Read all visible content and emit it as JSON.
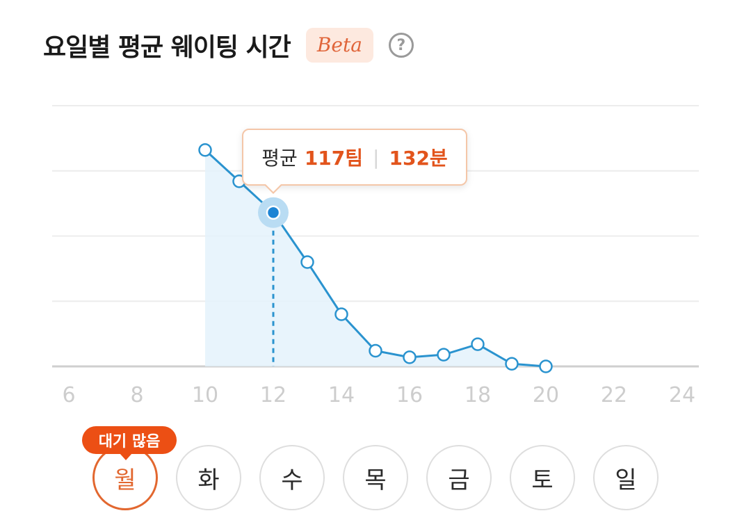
{
  "header": {
    "title": "요일별 평균 웨이팅 시간",
    "beta_label": "Beta",
    "help_glyph": "?"
  },
  "tooltip": {
    "label": "평균",
    "teams": "117팀",
    "minutes": "132분"
  },
  "busy_badge": "대기 많음",
  "days": [
    {
      "label": "월",
      "active": true
    },
    {
      "label": "화",
      "active": false
    },
    {
      "label": "수",
      "active": false
    },
    {
      "label": "목",
      "active": false
    },
    {
      "label": "금",
      "active": false
    },
    {
      "label": "토",
      "active": false
    },
    {
      "label": "일",
      "active": false
    }
  ],
  "colors": {
    "accent": "#e2541c",
    "line": "#2a93cf",
    "fill": "#e4f2fc",
    "grid": "#ececec"
  },
  "chart_data": {
    "type": "line",
    "title": "",
    "xlabel": "",
    "ylabel": "",
    "x_ticks": [
      "6",
      "8",
      "10",
      "12",
      "14",
      "16",
      "18",
      "20",
      "22",
      "24"
    ],
    "xlim": [
      6,
      24
    ],
    "ylim": [
      0,
      100
    ],
    "gridlines": 5,
    "selected_x": 12,
    "series": [
      {
        "x": [
          10,
          11,
          12,
          13,
          14,
          15,
          16,
          17,
          18,
          19,
          20
        ],
        "values": [
          83,
          71,
          59,
          40,
          20,
          6,
          3.5,
          4.5,
          8.5,
          1,
          0
        ]
      }
    ]
  }
}
